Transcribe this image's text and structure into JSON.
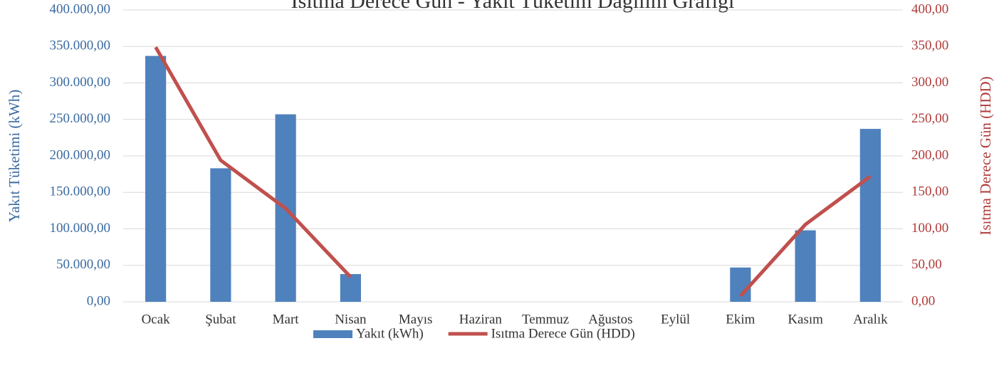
{
  "chart_data": {
    "type": "bar_line",
    "title": "Isıtma Derece Gün - Yakıt Tüketim Dağılım Grafiği",
    "ylabel": "Yakıt Tüketimi (kWh)",
    "y2label": "Isıtma Derece Gün (HDD)",
    "categories": [
      "Ocak",
      "Şubat",
      "Mart",
      "Nisan",
      "Mayıs",
      "Haziran",
      "Temmuz",
      "Ağustos",
      "Eylül",
      "Ekim",
      "Kasım",
      "Aralık"
    ],
    "series": [
      {
        "name": "Yakıt (kWh)",
        "type": "bar",
        "color": "#4f81bd",
        "axis": "y",
        "values": [
          337000,
          183000,
          257000,
          38000,
          null,
          null,
          null,
          null,
          null,
          47000,
          98000,
          237000
        ]
      },
      {
        "name": "Isıtma Derece Gün (HDD)",
        "type": "line",
        "color": "#c0504d",
        "axis": "y2",
        "values": [
          349,
          194,
          128,
          34,
          null,
          null,
          null,
          null,
          null,
          8,
          106,
          172
        ]
      }
    ],
    "ylim": [
      0,
      400000
    ],
    "yticks": [
      {
        "value": 0,
        "label": "0,00"
      },
      {
        "value": 50000,
        "label": "50.000,00"
      },
      {
        "value": 100000,
        "label": "100.000,00"
      },
      {
        "value": 150000,
        "label": "150.000,00"
      },
      {
        "value": 200000,
        "label": "200.000,00"
      },
      {
        "value": 250000,
        "label": "250.000,00"
      },
      {
        "value": 300000,
        "label": "300.000,00"
      },
      {
        "value": 350000,
        "label": "350.000,00"
      },
      {
        "value": 400000,
        "label": "400.000,00"
      }
    ],
    "y2lim": [
      0,
      400
    ],
    "y2ticks": [
      {
        "value": 0,
        "label": "0,00"
      },
      {
        "value": 50,
        "label": "50,00"
      },
      {
        "value": 100,
        "label": "100,00"
      },
      {
        "value": 150,
        "label": "150,00"
      },
      {
        "value": 200,
        "label": "200,00"
      },
      {
        "value": 250,
        "label": "250,00"
      },
      {
        "value": 300,
        "label": "300,00"
      },
      {
        "value": 350,
        "label": "350,00"
      },
      {
        "value": 400,
        "label": "400,00"
      }
    ],
    "grid": true,
    "legend": "bottom"
  }
}
